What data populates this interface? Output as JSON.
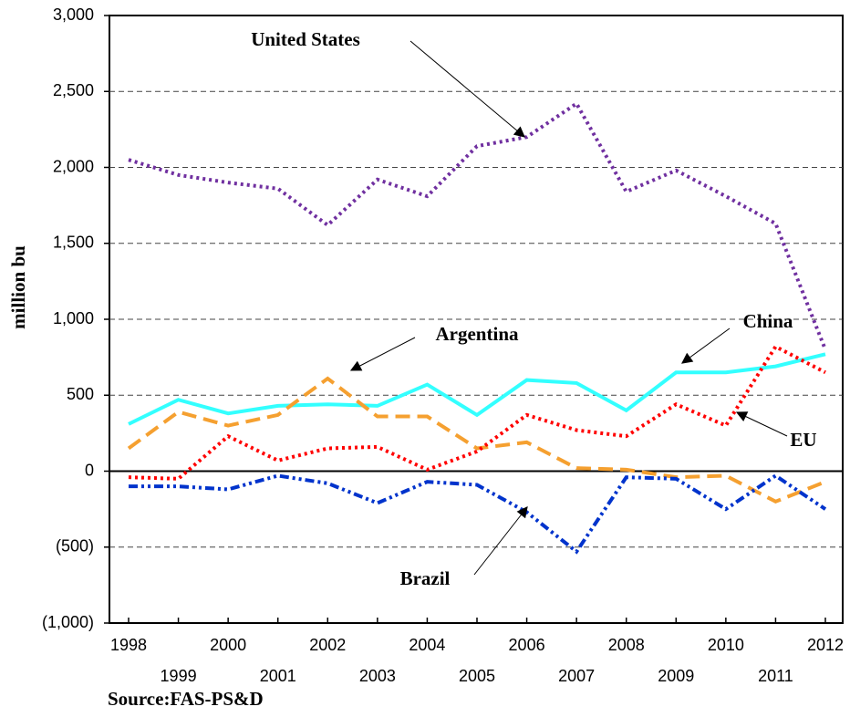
{
  "chart_data": {
    "type": "line",
    "y_label": "million bu",
    "source": "Source:FAS-PS&D",
    "categories": [
      "1998",
      "1999",
      "2000",
      "2001",
      "2002",
      "2003",
      "2004",
      "2005",
      "2006",
      "2007",
      "2008",
      "2009",
      "2010",
      "2011",
      "2012"
    ],
    "ylim": [
      -1000,
      3000
    ],
    "yticks": [
      {
        "value": -1000,
        "label": "(1,000)"
      },
      {
        "value": -500,
        "label": "(500)"
      },
      0,
      500,
      {
        "value": 1000,
        "label": "1,000"
      },
      {
        "value": 1500,
        "label": "1,500"
      },
      {
        "value": 2000,
        "label": "2,000"
      },
      {
        "value": 2500,
        "label": "2,500"
      },
      {
        "value": 3000,
        "label": "3,000"
      }
    ],
    "grid": true,
    "series": [
      {
        "name": "United States",
        "color": "#7030a0",
        "values": [
          2050,
          1950,
          1900,
          1860,
          1620,
          1920,
          1810,
          2140,
          2200,
          2420,
          1840,
          1980,
          1810,
          1630,
          800
        ]
      },
      {
        "name": "China",
        "color": "#33ffff",
        "values": [
          310,
          470,
          380,
          430,
          440,
          430,
          570,
          370,
          600,
          580,
          400,
          650,
          650,
          690,
          770
        ]
      },
      {
        "name": "Argentina",
        "color": "#f5a030",
        "values": [
          150,
          390,
          300,
          370,
          610,
          360,
          360,
          150,
          190,
          20,
          10,
          -40,
          -30,
          -200,
          -70
        ]
      },
      {
        "name": "EU",
        "color": "#ff0000",
        "values": [
          -40,
          -50,
          230,
          70,
          150,
          160,
          10,
          130,
          370,
          270,
          230,
          440,
          300,
          820,
          650
        ]
      },
      {
        "name": "Brazil",
        "color": "#0033cc",
        "values": [
          -100,
          -100,
          -120,
          -30,
          -80,
          -210,
          -70,
          -90,
          -270,
          -530,
          -40,
          -50,
          -250,
          -30,
          -250
        ]
      }
    ]
  }
}
